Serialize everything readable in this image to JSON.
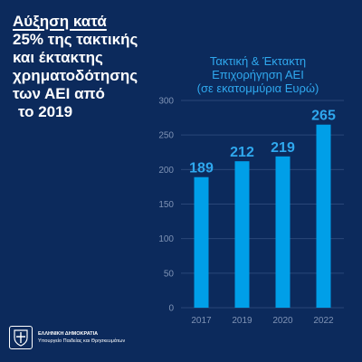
{
  "headline": {
    "lines": [
      "Αύξηση κατά",
      "25% της τακτικής",
      "και έκτακτης",
      "χρηματοδότησης",
      "των ΑΕΙ από",
      "το 2019"
    ]
  },
  "chart_data": {
    "type": "bar",
    "title_lines": [
      "Τακτική & Έκτακτη",
      "Επιχορήγηση ΑΕΙ",
      "(σε εκατομμύρια Ευρώ)"
    ],
    "categories": [
      "2017",
      "2019",
      "2020",
      "2022"
    ],
    "values": [
      189,
      212,
      219,
      265
    ],
    "yticks": [
      0,
      50,
      100,
      150,
      200,
      250,
      300
    ],
    "ylim": [
      0,
      300
    ],
    "grid": true,
    "bar_color": "#009fe8",
    "label_color": "#2fa8ee",
    "grid_color": "#2a4778",
    "tick_color": "#7f93b5"
  },
  "footer": {
    "org": "ΕΛΛΗΝΙΚΗ ΔΗΜΟΚΡΑΤΙΑ",
    "ministry": "Υπουργείο Παιδείας και Θρησκευμάτων",
    "emblem_icon": "greek-coat-of-arms-icon"
  }
}
